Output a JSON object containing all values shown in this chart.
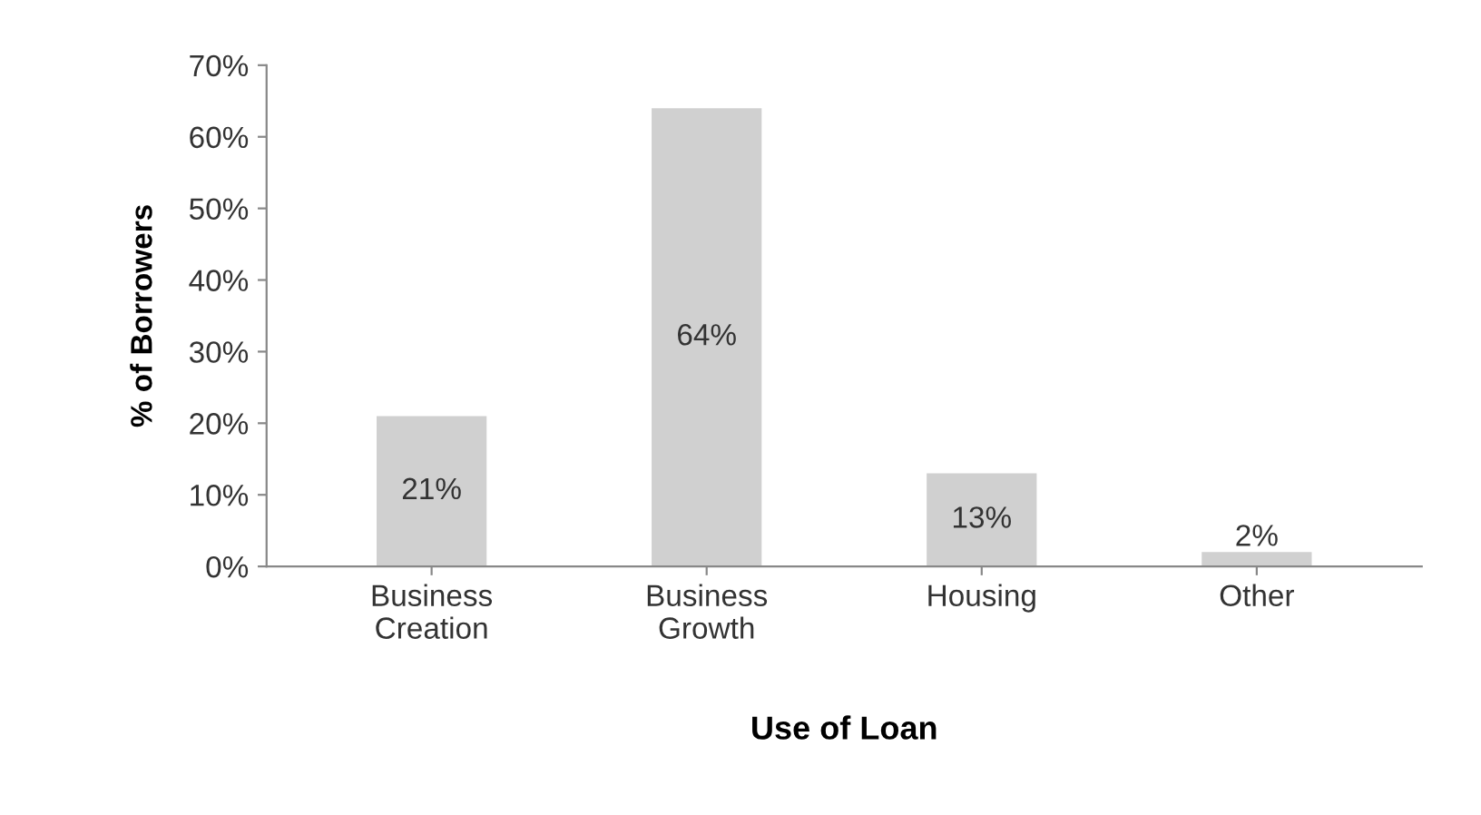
{
  "chart_data": {
    "type": "bar",
    "xlabel": "Use of Loan",
    "ylabel": "% of Borrowers",
    "categories": [
      "Business\nCreation",
      "Business\nGrowth",
      "Housing",
      "Other"
    ],
    "values": [
      21,
      64,
      13,
      2
    ],
    "color": "#d0d0d0",
    "value_labels": [
      "21%",
      "64%",
      "13%",
      "2%"
    ],
    "ylim": [
      0,
      70
    ],
    "yticks": [
      {
        "value": 0,
        "label": "0%"
      },
      {
        "value": 10,
        "label": "10%"
      },
      {
        "value": 20,
        "label": "20%"
      },
      {
        "value": 30,
        "label": "30%"
      },
      {
        "value": 40,
        "label": "40%"
      },
      {
        "value": 50,
        "label": "50%"
      },
      {
        "value": 60,
        "label": "60%"
      },
      {
        "value": 70,
        "label": "70%"
      }
    ],
    "grid": false,
    "legend": false
  }
}
